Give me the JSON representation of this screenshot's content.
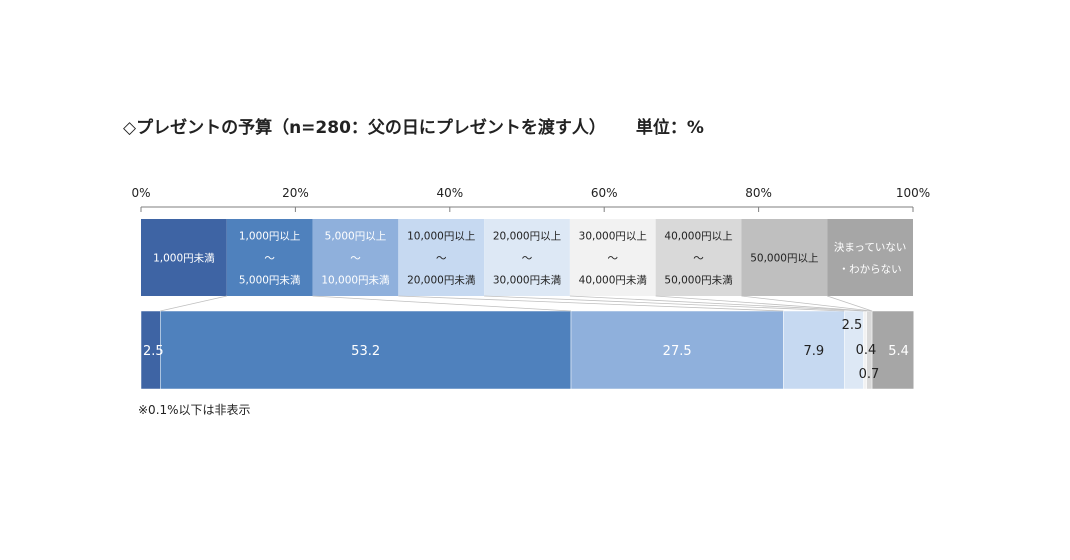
{
  "title": "◇プレゼントの予算（n=280：父の日にプレゼントを渡す人）",
  "unit_label": "単位：%",
  "footnote": "※0.1%以下は非表示",
  "chart_data": {
    "type": "bar",
    "orientation": "horizontal-stacked-100",
    "title": "◇プレゼントの予算（n=280：父の日にプレゼントを渡す人）",
    "unit": "単位：%",
    "n": 280,
    "xlim": [
      0,
      100
    ],
    "axis_ticks": [
      "0%",
      "20%",
      "40%",
      "60%",
      "80%",
      "100%"
    ],
    "legend_position": "above-bar",
    "categories": [
      {
        "label": [
          "1,000円未満"
        ],
        "value": 2.5,
        "color": "#3e64a4",
        "text_color": "#ffffff"
      },
      {
        "label": [
          "1,000円以上",
          "～",
          "5,000円未満"
        ],
        "value": 53.2,
        "color": "#4f81bd",
        "text_color": "#ffffff"
      },
      {
        "label": [
          "5,000円以上",
          "～",
          "10,000円未満"
        ],
        "value": 27.5,
        "color": "#8fb0dc",
        "text_color": "#ffffff"
      },
      {
        "label": [
          "10,000円以上",
          "～",
          "20,000円未満"
        ],
        "value": 7.9,
        "color": "#c6d9f1",
        "text_color": "#222222"
      },
      {
        "label": [
          "20,000円以上",
          "～",
          "30,000円未満"
        ],
        "value": 2.5,
        "color": "#dde8f5",
        "text_color": "#222222"
      },
      {
        "label": [
          "30,000円以上",
          "～",
          "40,000円未満"
        ],
        "value": 0.4,
        "color": "#f2f2f2",
        "text_color": "#222222"
      },
      {
        "label": [
          "40,000円以上",
          "～",
          "50,000円未満"
        ],
        "value": 0.7,
        "color": "#d9d9d9",
        "text_color": "#222222"
      },
      {
        "label": [
          "50,000円以上"
        ],
        "value": 0.0,
        "color": "#bfbfbf",
        "text_color": "#222222"
      },
      {
        "label": [
          "決まっていない",
          "・わからない"
        ],
        "value": 5.4,
        "color": "#a6a6a6",
        "text_color": "#ffffff"
      }
    ],
    "data_labels": [
      "2.5",
      "53.2",
      "27.5",
      "7.9",
      "2.5",
      "0.4",
      "0.7",
      "",
      "5.4"
    ],
    "grid": false
  }
}
